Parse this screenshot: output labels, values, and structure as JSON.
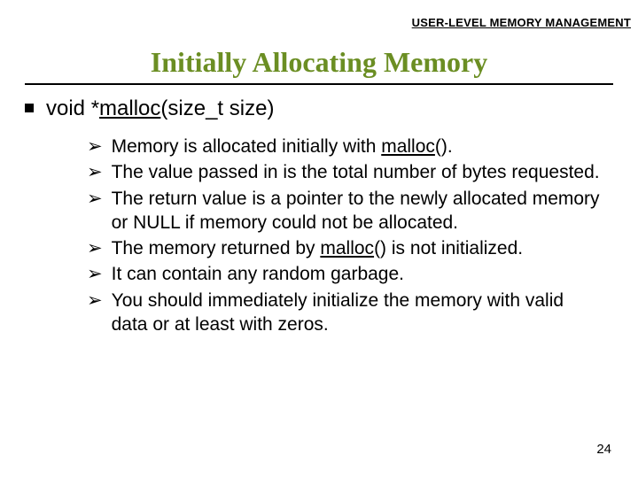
{
  "header": {
    "label": "USER-LEVEL MEMORY MANAGEMENT"
  },
  "title": "Initially Allocating Memory",
  "mainBullet": {
    "prefix": "void *",
    "func": "malloc",
    "args": "(size_t size)"
  },
  "subItems": [
    {
      "pre": "Memory is allocated initially with ",
      "u": "malloc",
      "post": "()."
    },
    {
      "pre": "The value passed in is the total number of bytes requested.",
      "u": "",
      "post": ""
    },
    {
      "pre": "The return value is a pointer to the newly allocated memory or NULL if memory could not be allocated.",
      "u": "",
      "post": ""
    },
    {
      "pre": "The memory returned by ",
      "u": "malloc",
      "post": "() is not initialized."
    },
    {
      "pre": " It can contain any random garbage.",
      "u": "",
      "post": ""
    },
    {
      "pre": " You should immediately initialize the memory with valid data or at least with zeros.",
      "u": "",
      "post": ""
    }
  ],
  "pageNumber": "24",
  "style": {
    "titleColor": "#6b8e23",
    "textColor": "#000000",
    "bulletMarker": "➢",
    "titleFontSize": 32,
    "mainFontSize": 24,
    "subFontSize": 21,
    "headerFontSize": 13
  }
}
